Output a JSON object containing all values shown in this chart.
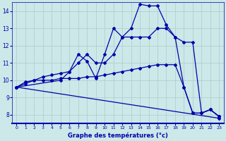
{
  "xlabel": "Graphe des températures (°c)",
  "bg_color": "#cce8e8",
  "line_color": "#0000aa",
  "grid_color": "#aacccc",
  "xlim": [
    -0.5,
    23.5
  ],
  "ylim": [
    7.5,
    14.5
  ],
  "yticks": [
    8,
    9,
    10,
    11,
    12,
    13,
    14
  ],
  "xticks": [
    0,
    1,
    2,
    3,
    4,
    5,
    6,
    7,
    8,
    9,
    10,
    11,
    12,
    13,
    14,
    15,
    16,
    17,
    18,
    19,
    20,
    21,
    22,
    23
  ],
  "lines": [
    {
      "x": [
        0,
        23
      ],
      "y": [
        9.6,
        7.8
      ]
    },
    {
      "x": [
        0,
        1,
        2,
        3,
        4,
        5,
        6,
        7,
        8,
        9,
        10,
        11,
        12,
        13,
        14,
        15,
        16,
        17,
        18,
        19,
        20,
        21,
        22,
        23
      ],
      "y": [
        9.6,
        9.8,
        10.0,
        10.0,
        10.0,
        10.1,
        10.1,
        10.1,
        10.2,
        10.2,
        10.3,
        10.4,
        10.5,
        10.6,
        10.7,
        10.8,
        10.9,
        10.9,
        10.9,
        9.6,
        8.1,
        8.1,
        8.3,
        7.9
      ]
    },
    {
      "x": [
        0,
        1,
        2,
        3,
        4,
        5,
        6,
        7,
        8,
        9,
        10,
        11,
        12,
        13,
        14,
        15,
        16,
        17,
        18,
        19,
        20,
        21,
        22,
        23
      ],
      "y": [
        9.6,
        9.9,
        10.0,
        10.2,
        10.3,
        10.4,
        10.5,
        11.0,
        11.5,
        11.0,
        11.0,
        11.5,
        12.5,
        12.5,
        12.5,
        12.5,
        13.0,
        13.0,
        12.5,
        9.6,
        8.1,
        8.1,
        8.3,
        7.9
      ]
    },
    {
      "x": [
        0,
        5,
        6,
        7,
        8,
        9,
        10,
        11,
        12,
        13,
        14,
        15,
        16,
        17,
        18,
        19,
        20,
        21,
        22,
        23
      ],
      "y": [
        9.6,
        10.0,
        10.5,
        11.5,
        11.1,
        10.1,
        11.5,
        13.0,
        12.5,
        13.0,
        14.4,
        14.3,
        14.3,
        13.2,
        12.5,
        12.2,
        12.2,
        8.1,
        8.3,
        7.9
      ]
    }
  ]
}
